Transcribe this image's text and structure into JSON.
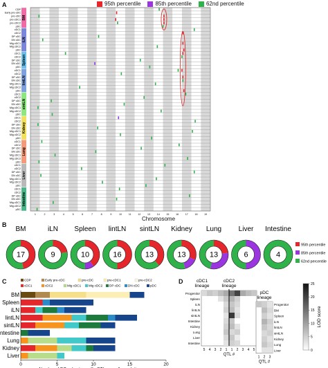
{
  "panel_letters": [
    "A",
    "B",
    "C",
    "D"
  ],
  "legend_a": [
    {
      "label": "95th percentile",
      "color": "#e5262b"
    },
    {
      "label": "85th percentile",
      "color": "#9a35e0"
    },
    {
      "label": "62nd percentile",
      "color": "#2fb24a"
    }
  ],
  "chart_data": [
    {
      "id": "A",
      "type": "heatmap",
      "xlabel": "Chromosome",
      "x_ticks": [
        "1",
        "2",
        "3",
        "4",
        "5",
        "6",
        "7",
        "8",
        "9",
        "10",
        "11",
        "12",
        "13",
        "14",
        "15",
        "16",
        "17",
        "18",
        "19"
      ],
      "tissues": [
        {
          "name": "BM",
          "color": "#f06aa6",
          "rows": [
            "CDP",
            "Early pre-cDC",
            "pre-cDC",
            "pre-cDC1",
            "pre-cDC2",
            "pDC"
          ]
        },
        {
          "name": "iLN",
          "color": "#7a86d9",
          "rows": [
            "cDC1",
            "cDC2",
            "DP cDC",
            "DN cDC",
            "Mig cDC1",
            "Mig cDC2",
            "pDC"
          ]
        },
        {
          "name": "Spleen",
          "color": "#64c0ea",
          "rows": [
            "cDC1",
            "cDC2",
            "DP cDC",
            "DN cDC",
            "pDC"
          ]
        },
        {
          "name": "lintLN",
          "color": "#7fa0df",
          "rows": [
            "cDC1",
            "cDC2",
            "DP cDC",
            "DN cDC",
            "Mig cDC1",
            "Mig cDC2",
            "pDC"
          ]
        },
        {
          "name": "sintLN",
          "color": "#8ce87c",
          "rows": [
            "cDC1",
            "cDC2",
            "DP cDC",
            "DN cDC",
            "Mig cDC1",
            "Mig cDC2",
            "pDC"
          ]
        },
        {
          "name": "Kidney",
          "color": "#f2df5c",
          "rows": [
            "cDC1",
            "cDC2",
            "DP cDC",
            "DN cDC",
            "Mig cDC1",
            "Mig cDC2",
            "pDC"
          ]
        },
        {
          "name": "Lung",
          "color": "#f49a7a",
          "rows": [
            "cDC1",
            "cDC2",
            "DP cDC",
            "DN cDC",
            "Mig cDC1",
            "Mig cDC2",
            "pDC"
          ]
        },
        {
          "name": "Liver",
          "color": "#b9b9b9",
          "rows": [
            "cDC1",
            "cDC2",
            "DP cDC",
            "DN cDC",
            "Mig cDC1",
            "Mig cDC2",
            "pDC"
          ]
        },
        {
          "name": "Intestine",
          "color": "#48b889",
          "rows": [
            "cDC1",
            "cDC2",
            "DP cDC",
            "DN cDC",
            "Mig cDC1",
            "Mig cDC2",
            "pDC"
          ]
        }
      ],
      "marks": [
        {
          "row": 1,
          "chr": 10.1,
          "level": "95th"
        },
        {
          "row": 3,
          "chr": 10.0,
          "level": "95th"
        },
        {
          "row": 2,
          "chr": 15.1,
          "level": "95th"
        },
        {
          "row": 3,
          "chr": 15.1,
          "level": "95th"
        },
        {
          "row": 4,
          "chr": 15.1,
          "level": "95th"
        },
        {
          "row": 7,
          "chr": 17.1,
          "level": "95th"
        },
        {
          "row": 10,
          "chr": 17.1,
          "level": "95th"
        },
        {
          "row": 12,
          "chr": 17.2,
          "level": "95th"
        },
        {
          "row": 13,
          "chr": 17.1,
          "level": "95th"
        },
        {
          "row": 18,
          "chr": 17.0,
          "level": "95th"
        },
        {
          "row": 20,
          "chr": 17.1,
          "level": "95th"
        },
        {
          "row": 24,
          "chr": 17.2,
          "level": "95th"
        },
        {
          "row": 16,
          "chr": 7.8,
          "level": "85th"
        },
        {
          "row": 32,
          "chr": 10.3,
          "level": "85th"
        },
        {
          "row": 0,
          "chr": 14.6,
          "level": "62nd"
        },
        {
          "row": 2,
          "chr": 1.9,
          "level": "62nd"
        },
        {
          "row": 4,
          "chr": 10.2,
          "level": "62nd"
        },
        {
          "row": 5,
          "chr": 15.0,
          "level": "62nd"
        },
        {
          "row": 6,
          "chr": 18.3,
          "level": "62nd"
        },
        {
          "row": 8,
          "chr": 8.2,
          "level": "62nd"
        },
        {
          "row": 9,
          "chr": 2.3,
          "level": "62nd"
        },
        {
          "row": 11,
          "chr": 14.4,
          "level": "62nd"
        },
        {
          "row": 13,
          "chr": 4.7,
          "level": "62nd"
        },
        {
          "row": 14,
          "chr": 17.0,
          "level": "62nd"
        },
        {
          "row": 15,
          "chr": 12.6,
          "level": "62nd"
        },
        {
          "row": 17,
          "chr": 13.6,
          "level": "62nd"
        },
        {
          "row": 18,
          "chr": 16.6,
          "level": "62nd"
        },
        {
          "row": 19,
          "chr": 10.6,
          "level": "62nd"
        },
        {
          "row": 21,
          "chr": 17.1,
          "level": "62nd"
        },
        {
          "row": 22,
          "chr": 14.2,
          "level": "62nd"
        },
        {
          "row": 23,
          "chr": 6.2,
          "level": "62nd"
        },
        {
          "row": 25,
          "chr": 17.4,
          "level": "62nd"
        },
        {
          "row": 26,
          "chr": 13.0,
          "level": "62nd"
        },
        {
          "row": 27,
          "chr": 3.2,
          "level": "62nd"
        },
        {
          "row": 28,
          "chr": 10.9,
          "level": "62nd"
        },
        {
          "row": 29,
          "chr": 1.8,
          "level": "62nd"
        },
        {
          "row": 30,
          "chr": 14.8,
          "level": "62nd"
        },
        {
          "row": 31,
          "chr": 3.3,
          "level": "62nd"
        },
        {
          "row": 33,
          "chr": 18.4,
          "level": "62nd"
        },
        {
          "row": 34,
          "chr": 1.8,
          "level": "62nd"
        },
        {
          "row": 35,
          "chr": 8.1,
          "level": "62nd"
        },
        {
          "row": 36,
          "chr": 18.1,
          "level": "62nd"
        },
        {
          "row": 37,
          "chr": 10.5,
          "level": "62nd"
        },
        {
          "row": 38,
          "chr": 13.8,
          "level": "62nd"
        },
        {
          "row": 39,
          "chr": 2.2,
          "level": "62nd"
        },
        {
          "row": 40,
          "chr": 16.7,
          "level": "62nd"
        },
        {
          "row": 41,
          "chr": 12.7,
          "level": "62nd"
        },
        {
          "row": 42,
          "chr": 7.9,
          "level": "62nd"
        },
        {
          "row": 43,
          "chr": 3.6,
          "level": "62nd"
        },
        {
          "row": 44,
          "chr": 17.6,
          "level": "62nd"
        },
        {
          "row": 45,
          "chr": 1.9,
          "level": "62nd"
        },
        {
          "row": 46,
          "chr": 15.2,
          "level": "62nd"
        },
        {
          "row": 47,
          "chr": 6.4,
          "level": "62nd"
        },
        {
          "row": 48,
          "chr": 18.3,
          "level": "62nd"
        },
        {
          "row": 49,
          "chr": 2.1,
          "level": "62nd"
        },
        {
          "row": 50,
          "chr": 14.3,
          "level": "62nd"
        },
        {
          "row": 51,
          "chr": 8.6,
          "level": "62nd"
        },
        {
          "row": 52,
          "chr": 13.2,
          "level": "62nd"
        },
        {
          "row": 53,
          "chr": 10.4,
          "level": "62nd"
        },
        {
          "row": 55,
          "chr": 17.8,
          "level": "62nd"
        },
        {
          "row": 56,
          "chr": 10.1,
          "level": "62nd"
        },
        {
          "row": 57,
          "chr": 3.4,
          "level": "62nd"
        },
        {
          "row": 59,
          "chr": 1.7,
          "level": "62nd"
        }
      ]
    },
    {
      "id": "B",
      "type": "pie",
      "legend": [
        {
          "label": "95th percentile",
          "color": "#e5262b"
        },
        {
          "label": "85th percentile",
          "color": "#9a35e0"
        },
        {
          "label": "62nd percentile",
          "color": "#2fb24a"
        }
      ],
      "charts": [
        {
          "tissue": "BM",
          "total": "17",
          "slices": [
            8,
            0,
            9
          ]
        },
        {
          "tissue": "iLN",
          "total": "9",
          "slices": [
            2,
            0,
            7
          ]
        },
        {
          "tissue": "Spleen",
          "total": "10",
          "slices": [
            4,
            1,
            5
          ]
        },
        {
          "tissue": "lintLN",
          "total": "16",
          "slices": [
            8,
            0,
            8
          ]
        },
        {
          "tissue": "sintLN",
          "total": "13",
          "slices": [
            5,
            0,
            8
          ]
        },
        {
          "tissue": "Kidney",
          "total": "13",
          "slices": [
            4,
            2,
            7
          ]
        },
        {
          "tissue": "Lung",
          "total": "13",
          "slices": [
            3,
            4,
            6
          ]
        },
        {
          "tissue": "Liver",
          "total": "6",
          "slices": [
            0,
            3,
            3
          ]
        },
        {
          "tissue": "Intestine",
          "total": "4",
          "slices": [
            0,
            0,
            4
          ]
        }
      ]
    },
    {
      "id": "C",
      "type": "bar",
      "orientation": "horizontal-stacked",
      "xlabel": "Number of DC subset specific QTL per cell population",
      "xlim": [
        0,
        20
      ],
      "x_ticks": [
        "0",
        "5",
        "10",
        "15",
        "20"
      ],
      "categories": [
        "BM",
        "Spleen",
        "iLN",
        "lintLN",
        "sintLN",
        "Intestine",
        "Lung",
        "Kidney",
        "Liver"
      ],
      "series": [
        {
          "name": "CDP",
          "color": "#6b4a12",
          "values": [
            2,
            0,
            0,
            0,
            0,
            0,
            0,
            0,
            0
          ]
        },
        {
          "name": "Early pre-cDC",
          "color": "#b08a4e",
          "values": [
            2,
            0,
            0,
            0,
            0,
            0,
            0,
            0,
            0
          ]
        },
        {
          "name": "pre-cDC",
          "color": "#f5df8a",
          "values": [
            5,
            0,
            0,
            0,
            0,
            0,
            0,
            0,
            0
          ]
        },
        {
          "name": "pre-cDC1",
          "color": "#fcefb6",
          "values": [
            6,
            0,
            0,
            0,
            0,
            0,
            0,
            0,
            0
          ]
        },
        {
          "name": "pre-cDC2",
          "color": "#fff7d8",
          "values": [
            0,
            0,
            0,
            0,
            0,
            0,
            0,
            0,
            0
          ]
        },
        {
          "name": "cDC1",
          "color": "#e5262b",
          "values": [
            0,
            3,
            2,
            3,
            2,
            0,
            0,
            2,
            0
          ]
        },
        {
          "name": "cDC2",
          "color": "#f7941d",
          "values": [
            0,
            0,
            0,
            4,
            4,
            0,
            1,
            3,
            1
          ]
        },
        {
          "name": "Mig cDC1",
          "color": "#b7dc8a",
          "values": [
            0,
            0,
            0,
            0,
            0,
            0,
            4,
            2,
            4
          ]
        },
        {
          "name": "Mig cDC2",
          "color": "#41c8c8",
          "values": [
            0,
            0,
            1,
            2,
            2,
            0,
            4,
            2,
            1
          ]
        },
        {
          "name": "DP cDC",
          "color": "#1c7a3c",
          "values": [
            0,
            0,
            2,
            3,
            3,
            1,
            0,
            1,
            0
          ]
        },
        {
          "name": "DN cDC",
          "color": "#2b8bc9",
          "values": [
            0,
            1,
            1,
            1,
            0,
            0,
            0,
            0,
            0
          ]
        },
        {
          "name": "pDC",
          "color": "#17458c",
          "values": [
            2,
            6,
            3,
            3,
            2,
            3,
            4,
            3,
            0
          ]
        }
      ]
    },
    {
      "id": "D",
      "type": "heatmap",
      "groups": [
        {
          "label": "cDC1 lineage",
          "x_ticks": [
            "5",
            "4",
            "3",
            "2",
            "1"
          ]
        },
        {
          "label": "cDC2 lineage",
          "x_ticks": [
            "1",
            "2",
            "3",
            "4",
            "5"
          ]
        },
        {
          "label": "pDC lineage",
          "x_ticks": [
            "1",
            "2",
            "3"
          ]
        }
      ],
      "rows_left": [
        "Progenitor",
        "Spleen",
        "iLN",
        "lintLN",
        "sintLN",
        "Intestine",
        "Kidney",
        "Lung",
        "Liver",
        "Intestine"
      ],
      "rows_right": [
        "Progenitor",
        "BM",
        "Spleen",
        "iLN",
        "lintLN",
        "sintLN",
        "Kidney",
        "Lung",
        "Liver"
      ],
      "xlabel_left": "QTL #",
      "xlabel_right": "QTL #",
      "colorbar": {
        "label": "LOD score",
        "ticks": [
          "25",
          "20",
          "15",
          "10",
          "5",
          "0"
        ],
        "min": 0,
        "max": 25
      },
      "left_values": [
        [
          4,
          6,
          5,
          7,
          9,
          15,
          20,
          9,
          7,
          6
        ],
        [
          0,
          0,
          0,
          3,
          6,
          8,
          5,
          0,
          0,
          0
        ],
        [
          0,
          0,
          0,
          0,
          4,
          6,
          4,
          0,
          0,
          0
        ],
        [
          0,
          0,
          0,
          0,
          5,
          7,
          3,
          0,
          0,
          0
        ],
        [
          0,
          0,
          0,
          0,
          3,
          21,
          4,
          0,
          0,
          0
        ],
        [
          0,
          0,
          0,
          0,
          4,
          6,
          0,
          0,
          0,
          0
        ],
        [
          0,
          0,
          0,
          0,
          5,
          7,
          3,
          0,
          0,
          0
        ],
        [
          0,
          0,
          0,
          0,
          6,
          4,
          5,
          0,
          0,
          0
        ],
        [
          0,
          0,
          0,
          0,
          4,
          6,
          2,
          0,
          0,
          0
        ],
        [
          0,
          0,
          0,
          0,
          3,
          5,
          4,
          0,
          0,
          0
        ]
      ],
      "right_values": [
        [
          6,
          5,
          3
        ],
        [
          0,
          7,
          4
        ],
        [
          0,
          5,
          3
        ],
        [
          0,
          8,
          5
        ],
        [
          0,
          6,
          4
        ],
        [
          0,
          4,
          5
        ],
        [
          0,
          5,
          3
        ],
        [
          0,
          6,
          4
        ],
        [
          0,
          3,
          3
        ]
      ]
    }
  ]
}
